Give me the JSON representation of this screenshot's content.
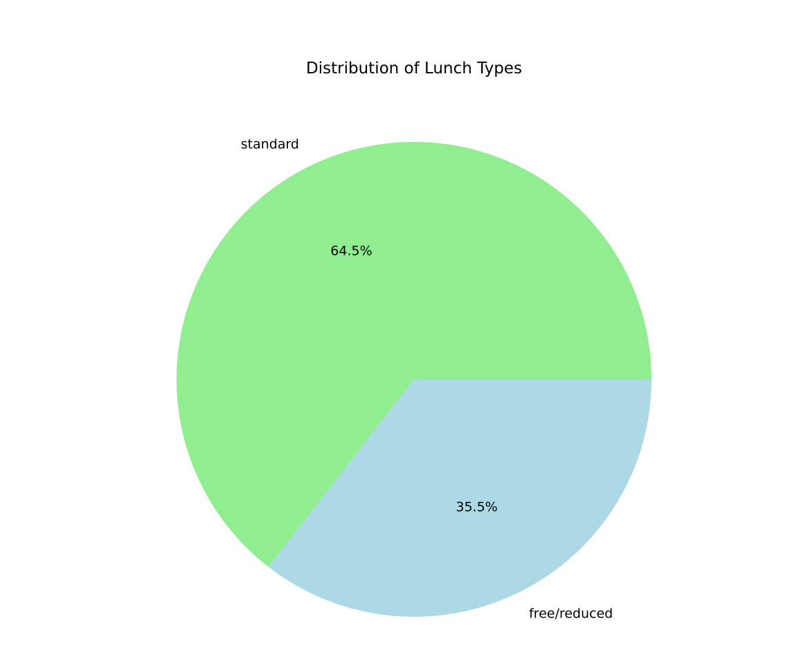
{
  "chart_data": {
    "type": "pie",
    "title": "Distribution of Lunch Types",
    "start_angle_deg": 0,
    "direction": "counterclockwise",
    "slices": [
      {
        "label": "standard",
        "value": 64.5,
        "pct_text": "64.5%",
        "color": "#90ee90"
      },
      {
        "label": "free/reduced",
        "value": 35.5,
        "pct_text": "35.5%",
        "color": "#add8e6"
      }
    ],
    "legend": "none"
  }
}
